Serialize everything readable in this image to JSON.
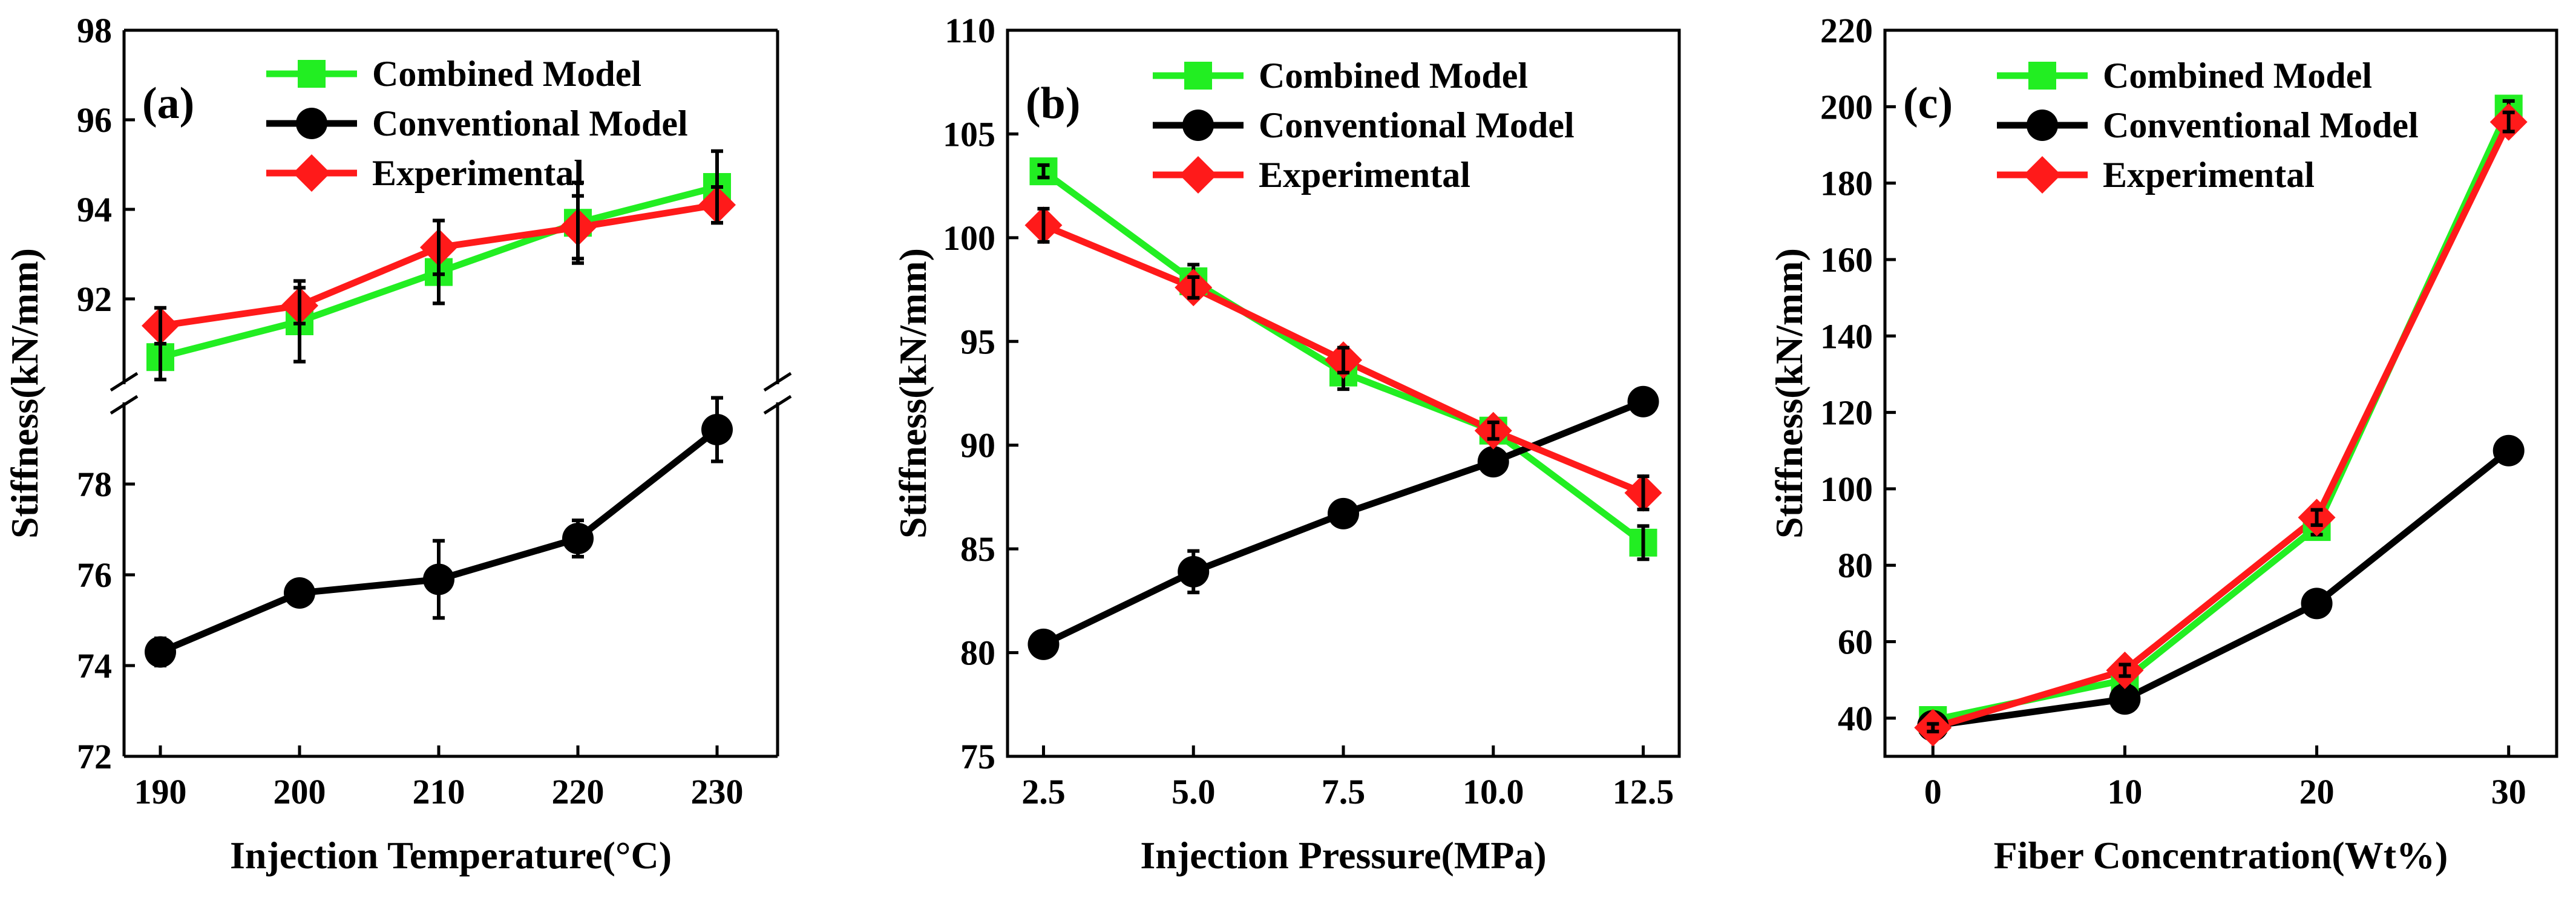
{
  "chart_data": [
    {
      "type": "line",
      "panel_label": "(a)",
      "xlabel": "Injection Temperature(°C)",
      "ylabel": "Stiffness(kN/mm)",
      "x": [
        190,
        200,
        210,
        220,
        230
      ],
      "x_tick_labels": [
        "190",
        "200",
        "210",
        "220",
        "230"
      ],
      "axis_break": true,
      "upper_ylim": [
        90,
        98
      ],
      "upper_y_tick_labels": [
        "92",
        "94",
        "96",
        "98"
      ],
      "lower_ylim": [
        72,
        80
      ],
      "lower_y_tick_labels": [
        "72",
        "74",
        "76",
        "78"
      ],
      "series": [
        {
          "name": "Combined Model",
          "values": [
            90.7,
            91.5,
            92.6,
            93.7,
            94.5
          ],
          "errors": [
            0.5,
            0.9,
            0.7,
            0.9,
            0.8
          ]
        },
        {
          "name": "Conventional Model",
          "values": [
            74.3,
            75.6,
            75.9,
            76.8,
            79.2
          ],
          "errors": [
            0.3,
            0.15,
            0.85,
            0.4,
            0.7
          ]
        },
        {
          "name": "Experimental",
          "values": [
            91.4,
            91.85,
            93.15,
            93.6,
            94.1
          ],
          "errors": [
            0.4,
            0.4,
            0.6,
            0.7,
            0.4
          ]
        }
      ],
      "legend": "top-left"
    },
    {
      "type": "line",
      "panel_label": "(b)",
      "xlabel": "Injection Pressure(MPa)",
      "ylabel": "Stiffness(kN/mm)",
      "x": [
        2.5,
        5.0,
        7.5,
        10.0,
        12.5
      ],
      "x_tick_labels": [
        "2.5",
        "5.0",
        "7.5",
        "10.0",
        "12.5"
      ],
      "xlim": [
        1.9,
        13.1
      ],
      "ylim": [
        75,
        110
      ],
      "y_tick_labels": [
        "75",
        "80",
        "85",
        "90",
        "95",
        "100",
        "105",
        "110"
      ],
      "series": [
        {
          "name": "Combined Model",
          "values": [
            103.2,
            97.9,
            93.5,
            90.7,
            85.3
          ],
          "errors": [
            0.3,
            0.8,
            0.8,
            0.4,
            0.8
          ]
        },
        {
          "name": "Conventional Model",
          "values": [
            80.4,
            83.9,
            86.7,
            89.2,
            92.1
          ],
          "errors": [
            0.2,
            1.0,
            0.6,
            0.5,
            0.3
          ]
        },
        {
          "name": "Experimental",
          "values": [
            100.6,
            97.6,
            94.1,
            90.7,
            87.7
          ],
          "errors": [
            0.8,
            0.5,
            0.6,
            0.4,
            0.8
          ]
        }
      ],
      "legend": "top-right"
    },
    {
      "type": "line",
      "panel_label": "(c)",
      "xlabel": "Fiber Concentration(Wt%)",
      "ylabel": "Stiffness(kN/mm)",
      "x": [
        0,
        10,
        20,
        30
      ],
      "x_tick_labels": [
        "0",
        "10",
        "20",
        "30"
      ],
      "xlim": [
        -2.5,
        32.5
      ],
      "ylim": [
        30,
        220
      ],
      "y_tick_labels": [
        "40",
        "60",
        "80",
        "100",
        "120",
        "140",
        "160",
        "180",
        "200",
        "220"
      ],
      "series": [
        {
          "name": "Combined Model",
          "values": [
            39.5,
            50.0,
            90.0,
            199.5
          ],
          "errors": [
            1.0,
            1.5,
            2.0,
            2.0
          ]
        },
        {
          "name": "Conventional Model",
          "values": [
            38.0,
            45.0,
            70.0,
            110.0
          ],
          "errors": [
            0.5,
            0.8,
            1.0,
            1.0
          ]
        },
        {
          "name": "Experimental",
          "values": [
            37.5,
            52.5,
            92.5,
            196.0
          ],
          "errors": [
            1.0,
            1.5,
            2.0,
            2.5
          ]
        }
      ],
      "legend": "top-left"
    }
  ],
  "colors": {
    "combined": "#22ee22",
    "conventional": "#000000",
    "experimental": "#ff1a1a"
  }
}
